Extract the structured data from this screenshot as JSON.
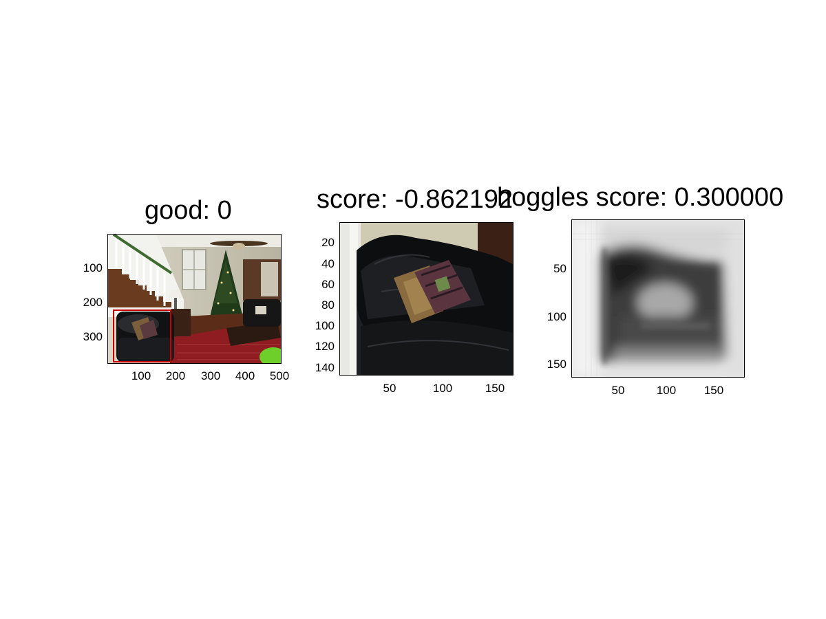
{
  "figure": {
    "panels": [
      {
        "title": "good: 0",
        "yticks": [
          "100",
          "200",
          "300"
        ],
        "xticks": [
          "100",
          "200",
          "300",
          "400",
          "500"
        ],
        "image": "living-room-scene-with-stairs-christmas-tree-and-black-leather-sofa",
        "detection_box_color": "#cc0000"
      },
      {
        "title": "score: -0.862192",
        "yticks": [
          "20",
          "40",
          "60",
          "80",
          "100",
          "120",
          "140"
        ],
        "xticks": [
          "50",
          "100",
          "150"
        ],
        "image": "cropped-black-leather-sofa-with-patterned-pillows"
      },
      {
        "title": "hoggles score: 0.300000",
        "yticks": [
          "50",
          "100",
          "150"
        ],
        "xticks": [
          "50",
          "100",
          "150"
        ],
        "image": "grayscale-hoggles-reconstruction"
      }
    ]
  }
}
